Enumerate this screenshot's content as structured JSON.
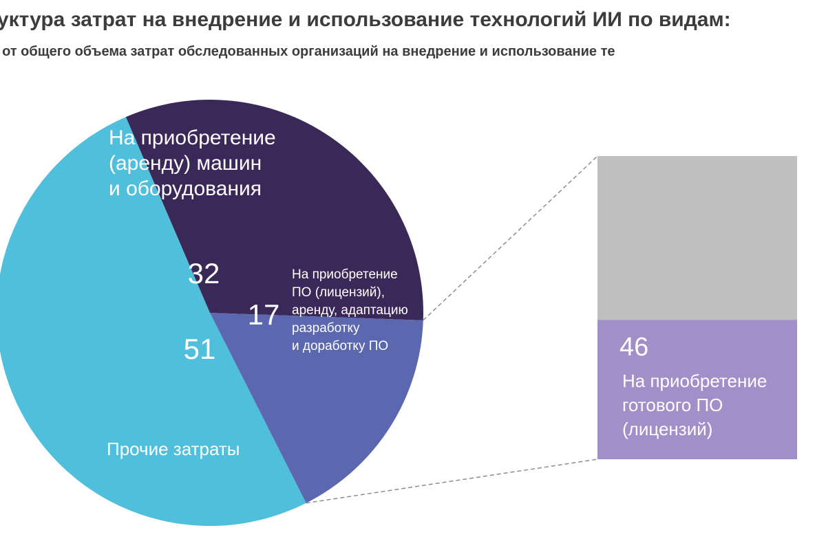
{
  "title": "руктура затрат на внедрение и использование технологий ИИ по видам:",
  "subtitle": ", от общего объема затрат обследованных организаций на внедрение и использование те",
  "chart_data": [
    {
      "type": "pie",
      "slices": [
        {
          "value": 51,
          "value_label": "51",
          "label": [
            "Прочие затраты"
          ],
          "color": "#4fbfdb"
        },
        {
          "value": 32,
          "value_label": "32",
          "label": [
            "На приобретение",
            "(аренду) машин",
            "и оборудования"
          ],
          "color": "#3a2858"
        },
        {
          "value": 17,
          "value_label": "17",
          "label": [
            "На приобретение",
            "ПО (лицензий),",
            "аренду, адаптацию",
            "разработку",
            "и доработку ПО"
          ],
          "color": "#5b68b0"
        }
      ]
    },
    {
      "type": "bar",
      "stacked": true,
      "breakdown_of": "17",
      "segments": [
        {
          "value": 46,
          "value_label": "46",
          "label": [
            "На приобретение",
            "готового ПО",
            "(лицензий)"
          ],
          "color": "#a18fca"
        },
        {
          "value": 54,
          "value_label": "",
          "label": [],
          "color": "#bfbfbf"
        }
      ]
    }
  ]
}
